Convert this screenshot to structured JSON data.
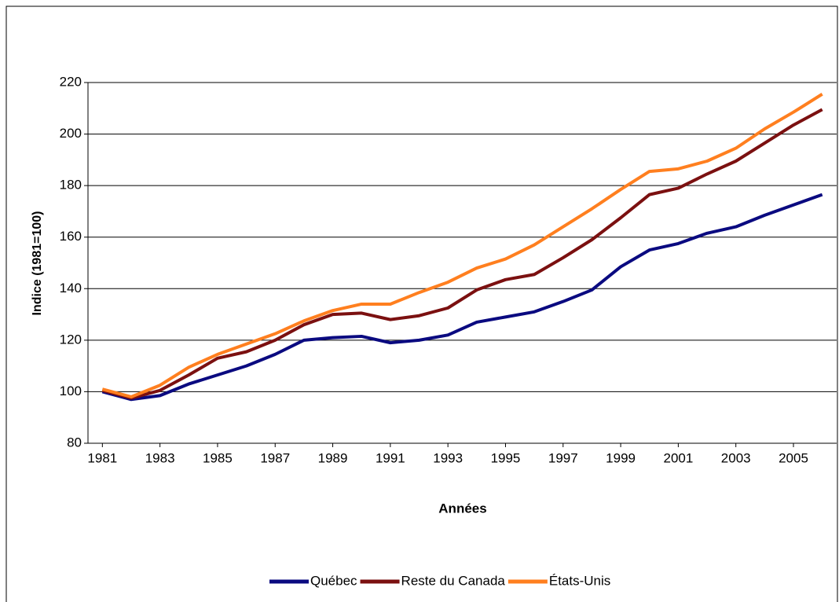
{
  "chart_data": {
    "type": "line",
    "y_label": "Indice (1981=100)",
    "x_label": "Années",
    "x": [
      1981,
      1982,
      1983,
      1984,
      1985,
      1986,
      1987,
      1988,
      1989,
      1990,
      1991,
      1992,
      1993,
      1994,
      1995,
      1996,
      1997,
      1998,
      1999,
      2000,
      2001,
      2002,
      2003,
      2004,
      2005,
      2006
    ],
    "xlim": [
      1980.5,
      2006.5
    ],
    "xticks": [
      1981,
      1983,
      1985,
      1987,
      1989,
      1991,
      1993,
      1995,
      1997,
      1999,
      2001,
      2003,
      2005
    ],
    "ylim": [
      80,
      220
    ],
    "yticks": [
      80,
      100,
      120,
      140,
      160,
      180,
      200,
      220
    ],
    "grid": true,
    "legend": "bottom",
    "series": [
      {
        "name": "Québec",
        "color": "#0a0a80",
        "values": [
          100,
          97,
          98.5,
          103,
          106.5,
          110,
          114.5,
          120,
          121,
          121.5,
          119,
          120,
          122,
          127,
          129,
          131,
          135,
          139.5,
          148.5,
          155,
          157.5,
          161.5,
          164,
          168.5,
          172.5,
          176.5
        ]
      },
      {
        "name": "Reste du Canada",
        "color": "#7b1010",
        "values": [
          100.5,
          97.5,
          100.5,
          106.5,
          113,
          115.5,
          120,
          126,
          130,
          130.5,
          128,
          129.5,
          132.5,
          139.5,
          143.5,
          145.5,
          152,
          159,
          167.5,
          176.5,
          179,
          184.5,
          189.5,
          196.5,
          203.5,
          209.5
        ]
      },
      {
        "name": "États-Unis",
        "color": "#ff7f1f",
        "values": [
          101,
          98,
          102.5,
          109.5,
          114.5,
          118.5,
          122.5,
          127.5,
          131.5,
          134,
          134,
          138.5,
          142.5,
          148,
          151.5,
          157,
          164,
          171,
          178.5,
          185.5,
          186.5,
          189.5,
          194.5,
          202,
          208.5,
          215.5
        ]
      }
    ]
  }
}
